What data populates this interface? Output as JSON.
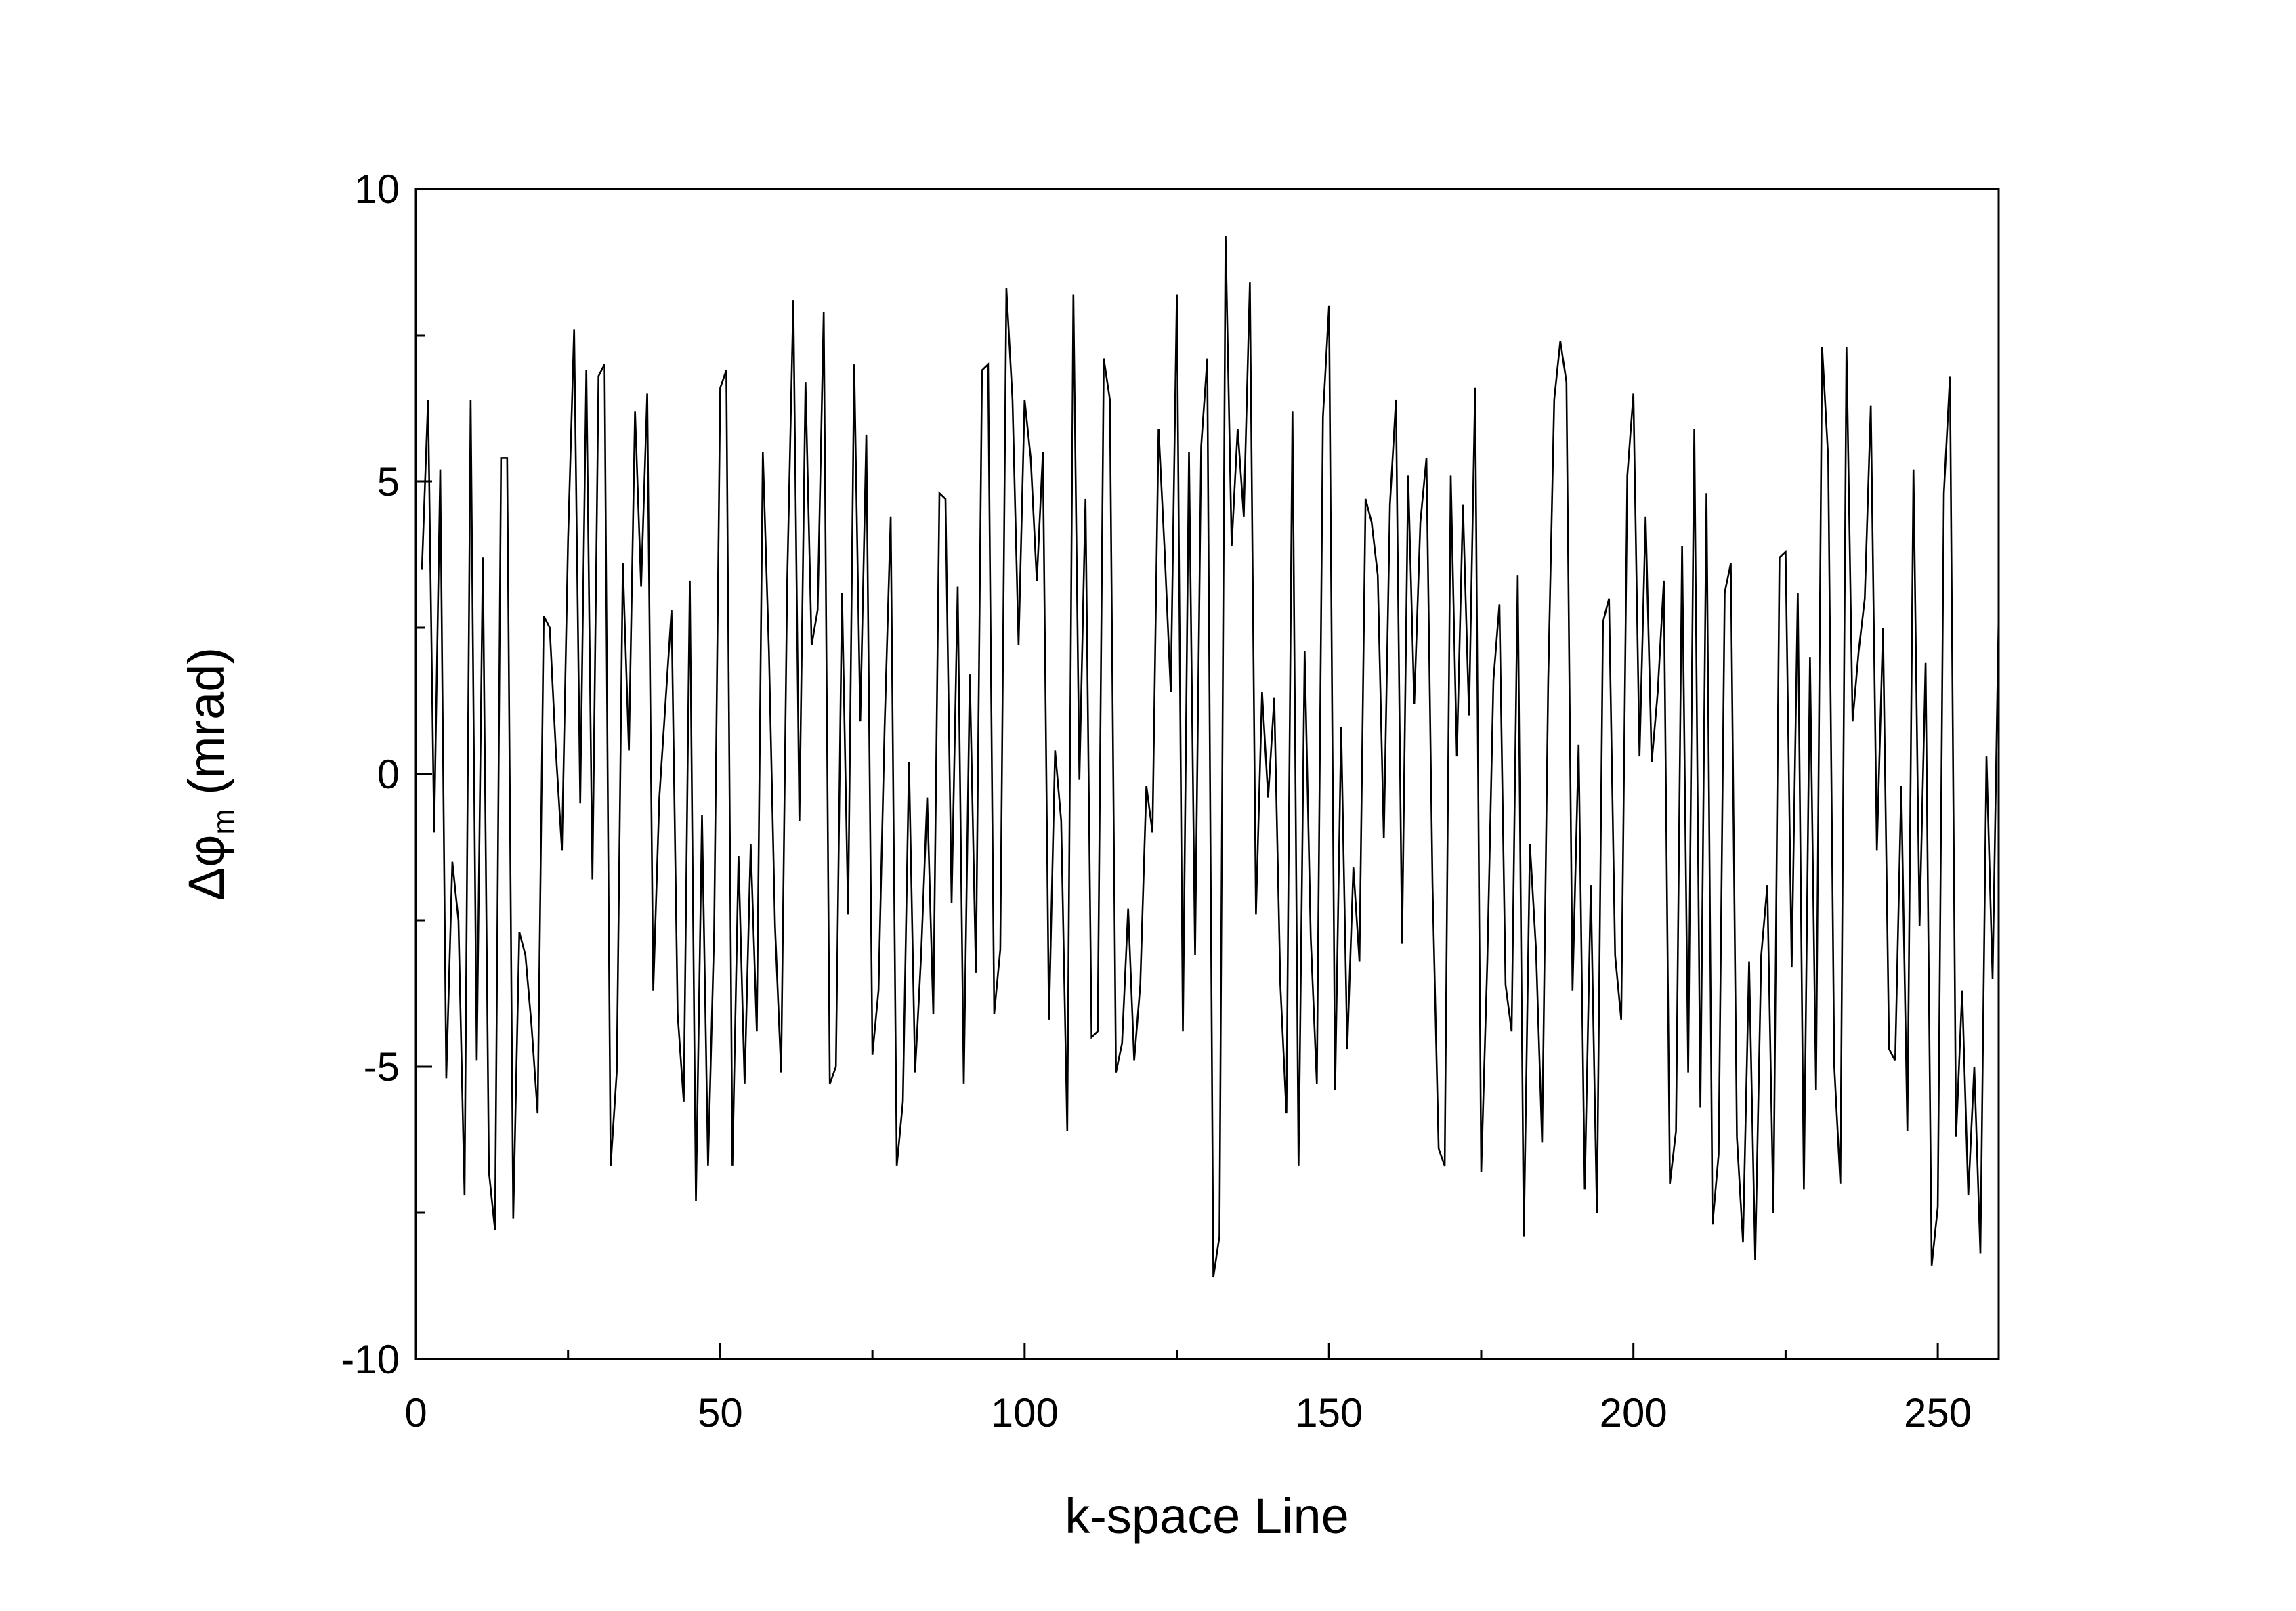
{
  "chart_data": {
    "type": "line",
    "xlabel": "k-space Line",
    "ylabel": {
      "prefix": "Δφ",
      "subscript": "m",
      "suffix": " (mrad)"
    },
    "xlim": [
      0,
      260
    ],
    "ylim": [
      -10,
      10
    ],
    "xticks": [
      0,
      50,
      100,
      150,
      200,
      250
    ],
    "yticks": [
      -10,
      -5,
      0,
      5,
      10
    ],
    "xtick_labels": [
      "0",
      "50",
      "100",
      "150",
      "200",
      "250"
    ],
    "ytick_labels": [
      "-10",
      "-5",
      "0",
      "5",
      "10"
    ],
    "grid": false,
    "line_color": "#000000",
    "series": [
      {
        "values": [
          3.5,
          6.4,
          -1.0,
          5.2,
          -5.2,
          -1.5,
          -2.5,
          -7.2,
          6.4,
          -4.9,
          3.7,
          -6.8,
          -7.8,
          5.4,
          5.4,
          -7.6,
          -2.7,
          -3.1,
          -4.3,
          -5.8,
          2.7,
          2.5,
          0.4,
          -1.3,
          4.0,
          7.6,
          -0.5,
          6.9,
          -1.8,
          6.8,
          7.0,
          -6.7,
          -5.1,
          3.6,
          0.4,
          6.2,
          3.2,
          6.5,
          -3.7,
          -0.4,
          1.2,
          2.8,
          -4.1,
          -5.6,
          3.3,
          -7.3,
          -0.7,
          -6.7,
          -2.7,
          6.6,
          6.9,
          -6.7,
          -1.4,
          -5.3,
          -1.2,
          -4.4,
          5.5,
          2.1,
          -2.6,
          -5.1,
          3.3,
          8.1,
          -0.8,
          6.7,
          2.2,
          2.8,
          7.9,
          -5.3,
          -5.0,
          3.1,
          -2.4,
          7.0,
          0.9,
          5.8,
          -4.8,
          -3.7,
          0.8,
          4.4,
          -6.7,
          -5.6,
          0.2,
          -5.1,
          -3.1,
          -0.4,
          -4.1,
          4.8,
          4.7,
          -2.2,
          3.2,
          -5.3,
          1.7,
          -3.4,
          6.9,
          7.0,
          -4.1,
          -3.0,
          8.3,
          6.4,
          2.2,
          6.4,
          5.4,
          3.3,
          5.5,
          -4.2,
          0.4,
          -0.8,
          -6.1,
          8.2,
          -0.1,
          4.7,
          -4.5,
          -4.4,
          7.1,
          6.4,
          -5.1,
          -4.6,
          -2.3,
          -4.9,
          -3.6,
          -0.2,
          -1.0,
          5.9,
          3.8,
          1.4,
          8.2,
          -4.4,
          5.5,
          -3.1,
          5.6,
          7.1,
          -8.6,
          -7.9,
          9.2,
          3.9,
          5.9,
          4.4,
          8.4,
          -2.4,
          1.4,
          -0.4,
          1.3,
          -3.6,
          -5.8,
          6.2,
          -6.7,
          2.1,
          -2.8,
          -5.3,
          6.1,
          8.0,
          -5.4,
          0.8,
          -4.7,
          -1.6,
          -3.2,
          4.7,
          4.3,
          3.4,
          -1.1,
          4.6,
          6.4,
          -2.9,
          5.1,
          1.2,
          4.3,
          5.4,
          -1.9,
          -6.4,
          -6.7,
          5.1,
          0.3,
          4.6,
          1.0,
          6.6,
          -6.8,
          -3.2,
          1.6,
          2.9,
          -3.6,
          -4.4,
          3.4,
          -7.9,
          -1.2,
          -3.0,
          -6.3,
          1.6,
          6.4,
          7.4,
          6.7,
          -3.7,
          0.5,
          -7.1,
          -1.9,
          -7.5,
          2.6,
          3.0,
          -3.1,
          -4.2,
          5.1,
          6.5,
          0.3,
          4.4,
          0.2,
          1.4,
          3.3,
          -7.0,
          -6.1,
          3.9,
          -5.1,
          5.9,
          -5.7,
          4.8,
          -7.7,
          -6.5,
          3.1,
          3.6,
          -6.2,
          -8.0,
          -3.2,
          -8.3,
          -3.1,
          -1.9,
          -7.5,
          3.7,
          3.8,
          -3.3,
          3.1,
          -7.1,
          2.0,
          -5.4,
          7.3,
          5.4,
          -5.0,
          -7.0,
          7.3,
          0.9,
          2.1,
          3.0,
          6.3,
          -1.3,
          2.5,
          -4.7,
          -4.9,
          -0.2,
          -6.1,
          5.2,
          -2.6,
          1.9,
          -8.4,
          -7.4,
          4.8,
          6.8,
          -6.2,
          -3.7,
          -7.2,
          -5.0,
          -8.2,
          0.3,
          -3.5,
          2.7
        ]
      }
    ]
  }
}
